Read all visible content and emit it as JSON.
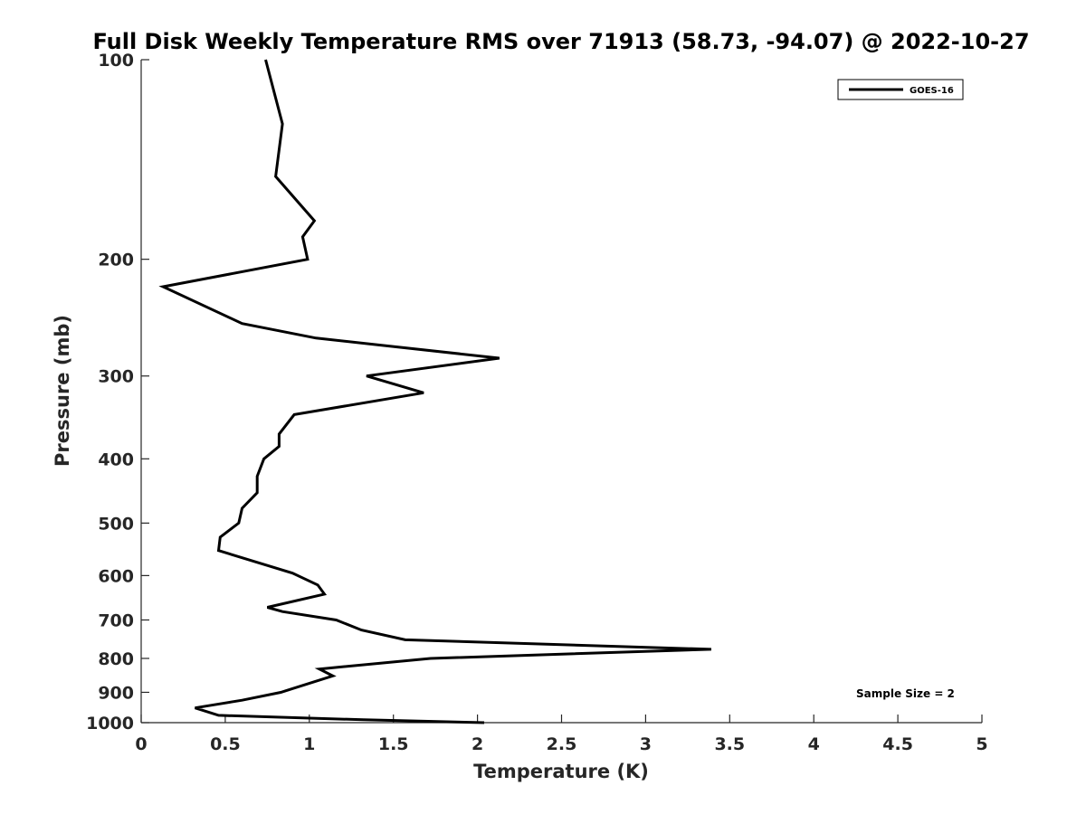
{
  "chart_data": {
    "type": "line",
    "title": "Full Disk Weekly Temperature RMS over 71913 (58.73, -94.07) @ 2022-10-27",
    "xlabel": "Temperature (K)",
    "ylabel": "Pressure (mb)",
    "xlim": [
      0,
      5
    ],
    "ylim": [
      100,
      1000
    ],
    "y_scale": "log",
    "y_reversed": true,
    "grid": false,
    "x_ticks": [
      "0",
      "0.5",
      "1",
      "1.5",
      "2",
      "2.5",
      "3",
      "3.5",
      "4",
      "4.5",
      "5"
    ],
    "x_tick_values": [
      0,
      0.5,
      1,
      1.5,
      2,
      2.5,
      3,
      3.5,
      4,
      4.5,
      5
    ],
    "y_ticks": [
      "100",
      "200",
      "300",
      "400",
      "500",
      "600",
      "700",
      "800",
      "900",
      "1000"
    ],
    "y_tick_values": [
      100,
      200,
      300,
      400,
      500,
      600,
      700,
      800,
      900,
      1000
    ],
    "legend_location": "top-right",
    "annotation": "Sample Size = 2",
    "series": [
      {
        "name": "GOES-16",
        "color": "#000000",
        "points": [
          {
            "x": 0.74,
            "p": 100
          },
          {
            "x": 0.84,
            "p": 125
          },
          {
            "x": 0.8,
            "p": 150
          },
          {
            "x": 1.03,
            "p": 175
          },
          {
            "x": 0.96,
            "p": 185
          },
          {
            "x": 0.99,
            "p": 200
          },
          {
            "x": 0.13,
            "p": 220
          },
          {
            "x": 0.6,
            "p": 250
          },
          {
            "x": 1.04,
            "p": 263
          },
          {
            "x": 2.13,
            "p": 282
          },
          {
            "x": 1.34,
            "p": 300
          },
          {
            "x": 1.68,
            "p": 318
          },
          {
            "x": 0.91,
            "p": 343
          },
          {
            "x": 0.82,
            "p": 367
          },
          {
            "x": 0.82,
            "p": 383
          },
          {
            "x": 0.73,
            "p": 400
          },
          {
            "x": 0.69,
            "p": 425
          },
          {
            "x": 0.69,
            "p": 450
          },
          {
            "x": 0.6,
            "p": 475
          },
          {
            "x": 0.58,
            "p": 500
          },
          {
            "x": 0.47,
            "p": 525
          },
          {
            "x": 0.46,
            "p": 550
          },
          {
            "x": 0.9,
            "p": 595
          },
          {
            "x": 1.05,
            "p": 620
          },
          {
            "x": 1.09,
            "p": 640
          },
          {
            "x": 0.75,
            "p": 670
          },
          {
            "x": 0.84,
            "p": 680
          },
          {
            "x": 1.16,
            "p": 700
          },
          {
            "x": 1.31,
            "p": 725
          },
          {
            "x": 1.57,
            "p": 750
          },
          {
            "x": 3.39,
            "p": 775
          },
          {
            "x": 1.72,
            "p": 800
          },
          {
            "x": 1.06,
            "p": 830
          },
          {
            "x": 1.14,
            "p": 850
          },
          {
            "x": 0.83,
            "p": 900
          },
          {
            "x": 0.6,
            "p": 925
          },
          {
            "x": 0.32,
            "p": 950
          },
          {
            "x": 0.46,
            "p": 975
          },
          {
            "x": 1.32,
            "p": 990
          },
          {
            "x": 2.04,
            "p": 1000
          }
        ]
      }
    ]
  }
}
